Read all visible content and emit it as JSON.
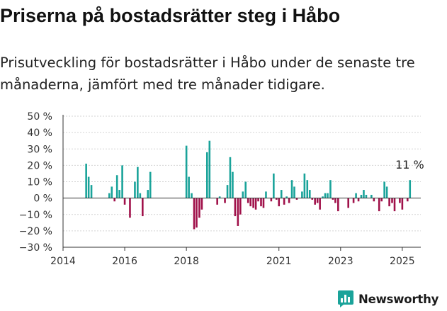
{
  "title": "Priserna på bostadsrätter steg i Håbo",
  "subtitle": "Prisutveckling för bostadsrätter i Håbo under de senaste tre månaderna, jämfört med tre månader tidigare.",
  "colors": {
    "positive": "#1aa39a",
    "negative": "#a0114a",
    "brand": "#1aa39a",
    "axis": "#333333",
    "grid": "#d3d3d3"
  },
  "brand": {
    "name": "Newsworthy",
    "icon": "bar-chart-icon"
  },
  "chart_data": {
    "type": "bar",
    "title": "",
    "xlabel": "",
    "ylabel": "",
    "ylim": [
      -30,
      50
    ],
    "xlim": [
      2014.0,
      2025.6
    ],
    "y_ticks": [
      50,
      40,
      30,
      20,
      10,
      0,
      -10,
      -20,
      -30
    ],
    "y_tick_labels": [
      "50 %",
      "40 %",
      "30 %",
      "20 %",
      "10 %",
      "0 %",
      "−10 %",
      "−20 %",
      "−30 %"
    ],
    "x_ticks": [
      2014,
      2016,
      2018,
      2021,
      2023,
      2025
    ],
    "x_tick_labels": [
      "2014",
      "2016",
      "2018",
      "2021",
      "2023",
      "2025"
    ],
    "grid": true,
    "series": [
      {
        "x": [
          2014.75,
          2014.83,
          2014.92,
          2015.5,
          2015.58,
          2015.67,
          2015.75,
          2015.83,
          2015.92,
          2016.0,
          2016.08,
          2016.17,
          2016.33,
          2016.42,
          2016.5,
          2016.58,
          2016.75,
          2016.83,
          2018.0,
          2018.08,
          2018.17,
          2018.25,
          2018.33,
          2018.42,
          2018.5,
          2018.58,
          2018.67,
          2018.75,
          2019.0,
          2019.08,
          2019.25,
          2019.33,
          2019.42,
          2019.5,
          2019.58,
          2019.67,
          2019.75,
          2019.83,
          2019.92,
          2020.0,
          2020.08,
          2020.17,
          2020.25,
          2020.33,
          2020.42,
          2020.5,
          2020.58,
          2020.75,
          2020.83,
          2020.92,
          2021.0,
          2021.08,
          2021.17,
          2021.25,
          2021.33,
          2021.42,
          2021.5,
          2021.58,
          2021.67,
          2021.75,
          2021.83,
          2021.92,
          2022.0,
          2022.08,
          2022.17,
          2022.25,
          2022.33,
          2022.42,
          2022.5,
          2022.58,
          2022.67,
          2022.75,
          2022.83,
          2022.92,
          2023.25,
          2023.42,
          2023.5,
          2023.58,
          2023.67,
          2023.75,
          2023.83,
          2024.0,
          2024.08,
          2024.25,
          2024.33,
          2024.42,
          2024.5,
          2024.58,
          2024.67,
          2024.75,
          2024.92,
          2025.0,
          2025.08,
          2025.17,
          2025.25
        ],
        "values": [
          21,
          13,
          8,
          3,
          7,
          -2,
          14,
          5,
          20,
          -4,
          0,
          -12,
          10,
          19,
          3,
          -11,
          5,
          16,
          32,
          13,
          3,
          -19,
          -18,
          -12,
          -7,
          0,
          28,
          35,
          -4,
          1,
          -3,
          8,
          25,
          16,
          -11,
          -17,
          -10,
          4,
          10,
          -3,
          -5,
          -6,
          -7,
          -2,
          -5,
          -6,
          4,
          -2,
          15,
          -1,
          -5,
          5,
          -4,
          1,
          -3,
          11,
          7,
          -1,
          0,
          4,
          15,
          11,
          5,
          -1,
          -4,
          -3,
          -7,
          1,
          3,
          3,
          11,
          -1,
          -3,
          -8,
          -6,
          -3,
          3,
          -2,
          2,
          5,
          2,
          2,
          -2,
          -8,
          -2,
          10,
          7,
          -5,
          -3,
          -8,
          -3,
          -7,
          0,
          -2,
          11
        ]
      }
    ],
    "annotations": [
      {
        "text": "11 %",
        "x": 2025.25,
        "y": 11
      }
    ]
  }
}
